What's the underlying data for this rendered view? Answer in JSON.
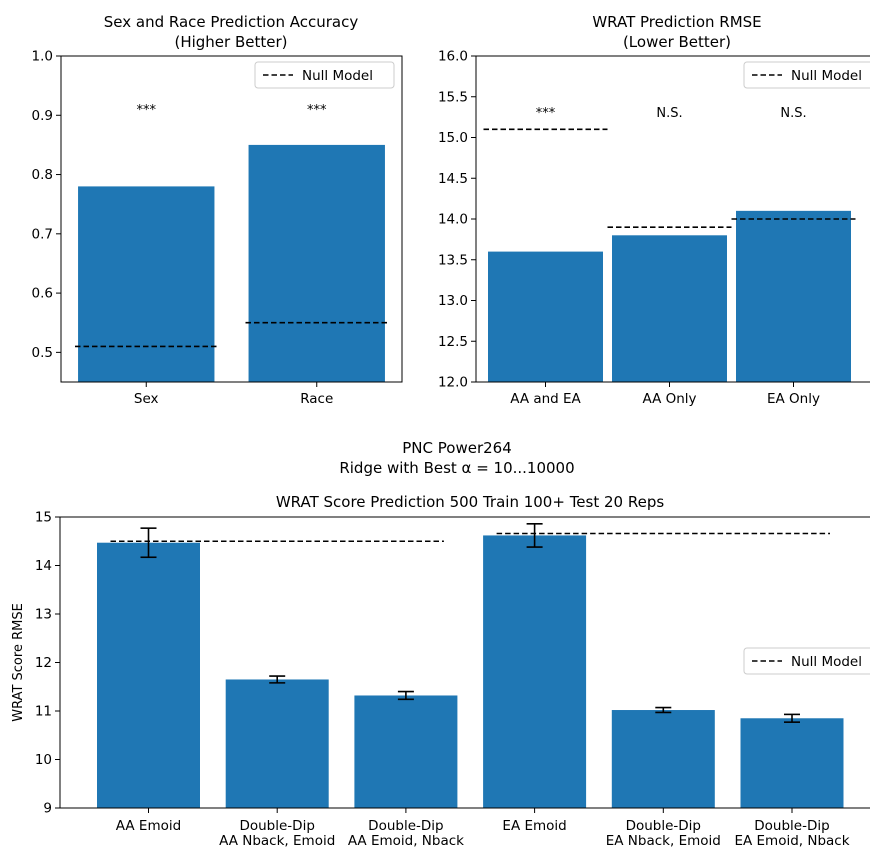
{
  "figure": {
    "suptitle_line1": "PNC Power264",
    "suptitle_line2": "Ridge with Best α = 10...10000"
  },
  "legend_label": "Null Model",
  "colors": {
    "bar": "#1f77b4",
    "null_line": "#000000",
    "error_bar": "#000000"
  },
  "chart_data": [
    {
      "type": "bar",
      "title_line1": "Sex and Race Prediction Accuracy",
      "title_line2": "(Higher Better)",
      "categories": [
        "Sex",
        "Race"
      ],
      "values": [
        0.78,
        0.85
      ],
      "null_model": [
        0.51,
        0.55
      ],
      "annotations": [
        "***",
        "***"
      ],
      "ylim": [
        0.45,
        1.0
      ],
      "yticks": [
        0.5,
        0.6,
        0.7,
        0.8,
        0.9,
        1.0
      ],
      "ytick_labels": [
        "0.5",
        "0.6",
        "0.7",
        "0.8",
        "0.9",
        "1.0"
      ],
      "xlabel": "",
      "ylabel": "",
      "legend": "top-right"
    },
    {
      "type": "bar",
      "title_line1": "WRAT Prediction RMSE",
      "title_line2": "(Lower Better)",
      "categories": [
        "AA and EA",
        "AA Only",
        "EA Only"
      ],
      "values": [
        13.6,
        13.8,
        14.1
      ],
      "null_model": [
        15.1,
        13.9,
        14.0
      ],
      "annotations": [
        "***",
        "N.S.",
        "N.S."
      ],
      "ylim": [
        12.0,
        16.0
      ],
      "yticks": [
        12.0,
        12.5,
        13.0,
        13.5,
        14.0,
        14.5,
        15.0,
        15.5,
        16.0
      ],
      "ytick_labels": [
        "12.0",
        "12.5",
        "13.0",
        "13.5",
        "14.0",
        "14.5",
        "15.0",
        "15.5",
        "16.0"
      ],
      "xlabel": "",
      "ylabel": "",
      "legend": "top-right"
    },
    {
      "type": "bar",
      "title": "WRAT Score Prediction 500 Train 100+ Test 20 Reps",
      "categories": [
        [
          "AA Emoid"
        ],
        [
          "Double-Dip",
          "AA Nback, Emoid"
        ],
        [
          "Double-Dip",
          "AA Emoid, Nback"
        ],
        [
          "EA Emoid"
        ],
        [
          "Double-Dip",
          "EA Nback, Emoid"
        ],
        [
          "Double-Dip",
          "EA Emoid, Nback"
        ]
      ],
      "values": [
        14.47,
        11.65,
        11.32,
        14.62,
        11.02,
        10.85
      ],
      "error": [
        0.3,
        0.07,
        0.08,
        0.24,
        0.05,
        0.08
      ],
      "null_model_groups": [
        {
          "from_bar": 0,
          "to_bar": 2,
          "value": 14.5
        },
        {
          "from_bar": 3,
          "to_bar": 5,
          "value": 14.66
        }
      ],
      "ylim": [
        9,
        15
      ],
      "yticks": [
        9,
        10,
        11,
        12,
        13,
        14,
        15
      ],
      "ytick_labels": [
        "9",
        "10",
        "11",
        "12",
        "13",
        "14",
        "15"
      ],
      "xlabel": "",
      "ylabel": "WRAT Score RMSE",
      "legend": "center-right"
    }
  ]
}
